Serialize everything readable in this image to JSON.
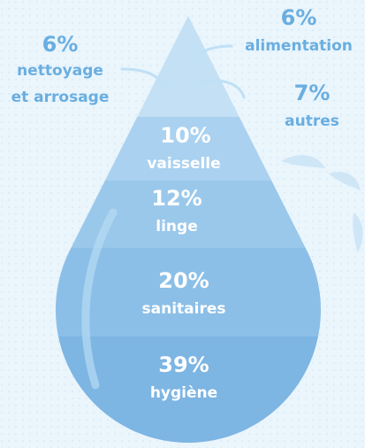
{
  "items": [
    {
      "percent": "6%",
      "label": [
        "nettoyage",
        "et arrosage"
      ]
    },
    {
      "percent": "6%",
      "label": [
        "alimentation"
      ]
    },
    {
      "percent": "7%",
      "label": [
        "autres"
      ]
    },
    {
      "percent": "10%",
      "label": [
        "vaisselle"
      ]
    },
    {
      "percent": "12%",
      "label": [
        "linge"
      ]
    },
    {
      "percent": "20%",
      "label": [
        "sanitaires"
      ]
    },
    {
      "percent": "39%",
      "label": [
        "hygiène"
      ]
    }
  ]
}
